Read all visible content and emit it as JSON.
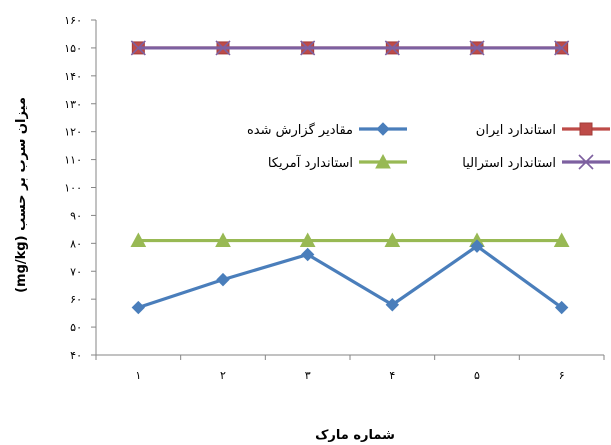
{
  "chart_data": {
    "type": "line",
    "title": "",
    "xlabel": "شماره مارک",
    "ylabel": "میزان سرب بر حسب (mg/kg)",
    "x": [
      "۱",
      "۲",
      "۳",
      "۴",
      "۵",
      "۶"
    ],
    "y_ticks": [
      "۴۰",
      "۵۰",
      "۶۰",
      "۷۰",
      "۸۰",
      "۹۰",
      "۱۰۰",
      "۱۱۰",
      "۱۲۰",
      "۱۳۰",
      "۱۴۰",
      "۱۵۰",
      "۱۶۰"
    ],
    "ylim": [
      40,
      160
    ],
    "grid": false,
    "legend_position": "center",
    "series": [
      {
        "name": "مقادیر گزارش شده",
        "values": [
          57,
          67,
          76,
          58,
          79,
          57
        ],
        "color": "#4a7ebb",
        "marker": "diamond"
      },
      {
        "name": "استاندارد ایران",
        "values": [
          150,
          150,
          150,
          150,
          150,
          150
        ],
        "color": "#be4b48",
        "marker": "square"
      },
      {
        "name": "استاندارد آمریکا",
        "values": [
          81,
          81,
          81,
          81,
          81,
          81
        ],
        "color": "#98b954",
        "marker": "triangle"
      },
      {
        "name": "استاندارد استرالیا",
        "values": [
          150,
          150,
          150,
          150,
          150,
          150
        ],
        "color": "#7d60a0",
        "marker": "x"
      }
    ]
  }
}
